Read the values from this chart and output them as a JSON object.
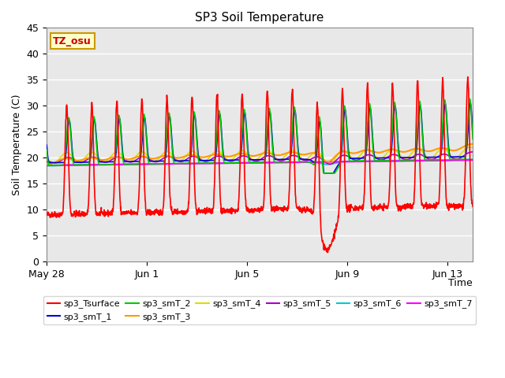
{
  "title": "SP3 Soil Temperature",
  "ylabel": "Soil Temperature (C)",
  "xlabel": "Time",
  "ylim": [
    0,
    45
  ],
  "xlim": [
    0,
    17
  ],
  "background_color": "#ffffff",
  "plot_bg_color": "#e8e8e8",
  "annotation_text": "TZ_osu",
  "annotation_bg": "#ffffcc",
  "annotation_border": "#cc9900",
  "x_tick_labels": [
    "May 28",
    "Jun 1",
    "Jun 5",
    "Jun 9",
    "Jun 13"
  ],
  "x_tick_positions": [
    0,
    4,
    8,
    12,
    16
  ],
  "y_ticks": [
    0,
    5,
    10,
    15,
    20,
    25,
    30,
    35,
    40,
    45
  ],
  "legend_entries": [
    {
      "label": "sp3_Tsurface",
      "color": "#ff0000",
      "lw": 1.2
    },
    {
      "label": "sp3_smT_1",
      "color": "#0000dd",
      "lw": 1.2
    },
    {
      "label": "sp3_smT_2",
      "color": "#00cc00",
      "lw": 1.2
    },
    {
      "label": "sp3_smT_3",
      "color": "#ff9900",
      "lw": 1.5
    },
    {
      "label": "sp3_smT_4",
      "color": "#dddd00",
      "lw": 1.2
    },
    {
      "label": "sp3_smT_5",
      "color": "#aa00cc",
      "lw": 1.2
    },
    {
      "label": "sp3_smT_6",
      "color": "#00cccc",
      "lw": 1.5
    },
    {
      "label": "sp3_smT_7",
      "color": "#ff00ff",
      "lw": 1.5
    }
  ]
}
